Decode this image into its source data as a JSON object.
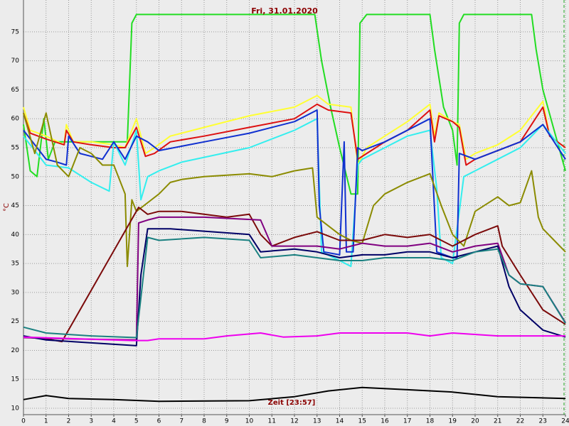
{
  "chart_data": {
    "type": "line",
    "title": "Fri, 31.01.2020",
    "xlabel": "Zeit [23:57]",
    "ylabel": "°C",
    "xlim": [
      0,
      24
    ],
    "xticks": [
      0,
      1,
      2,
      3,
      4,
      5,
      6,
      7,
      8,
      9,
      10,
      11,
      12,
      13,
      14,
      15,
      16,
      17,
      18,
      19,
      20,
      21,
      22,
      23,
      24
    ],
    "ylim": [
      8.9,
      80.5
    ],
    "yticks": [
      10,
      15,
      20,
      25,
      30,
      35,
      40,
      45,
      50,
      55,
      60,
      65,
      70,
      75
    ],
    "grid": true,
    "series": [
      {
        "color": "#22dd22",
        "x": [
          0,
          0.3,
          0.6,
          0.9,
          1.1,
          1.4,
          2,
          3,
          4,
          4.5,
          4.6,
          4.8,
          5,
          6,
          8,
          10,
          12,
          12.9,
          13.2,
          13.6,
          14,
          14.5,
          14.8,
          14.9,
          15.2,
          17,
          18,
          18.2,
          18.6,
          19,
          19.2,
          19.3,
          19.5,
          21,
          22.5,
          22.7,
          23,
          23.5,
          24
        ],
        "values": [
          59,
          51,
          50,
          60,
          53,
          56,
          56,
          56,
          56,
          56,
          56,
          76.5,
          78,
          78,
          78,
          78,
          78,
          78,
          70,
          62,
          55,
          47,
          47,
          76.5,
          78,
          78,
          78,
          72,
          62,
          58,
          52,
          76.5,
          78,
          78,
          78,
          72,
          65,
          58,
          51
        ]
      },
      {
        "color": "#ffff33",
        "x": [
          0,
          0.3,
          1,
          1.8,
          1.9,
          2.2,
          3,
          4,
          4.5,
          5,
          5.4,
          5.8,
          6.5,
          8,
          10,
          12,
          13,
          13.5,
          14.5,
          14.8,
          15.2,
          16,
          17,
          18,
          18.2,
          18.4,
          19,
          19.3,
          19.6,
          20,
          21,
          22,
          23,
          23.3,
          24
        ],
        "values": [
          62,
          58,
          57,
          55.5,
          59,
          56,
          56,
          55.5,
          55,
          60,
          54,
          55,
          57,
          58.5,
          60.5,
          62,
          64,
          62.5,
          62,
          52,
          55,
          57,
          59.5,
          62.5,
          57,
          61,
          59.5,
          59,
          53,
          54,
          55.5,
          58,
          63,
          57,
          55
        ]
      },
      {
        "color": "#dd1111",
        "x": [
          0,
          0.3,
          1,
          1.8,
          1.9,
          2.2,
          3,
          4,
          4.5,
          5,
          5.4,
          5.8,
          6.5,
          8,
          10,
          12,
          13,
          13.5,
          14.5,
          14.8,
          15.2,
          16,
          17,
          18,
          18.2,
          18.4,
          19,
          19.3,
          19.6,
          20,
          21,
          22,
          23,
          23.3,
          24
        ],
        "values": [
          61,
          57.5,
          56.5,
          55.5,
          58,
          56,
          55.5,
          55,
          55,
          58.5,
          53.5,
          54,
          56,
          57,
          58.5,
          60,
          62.5,
          61.5,
          61,
          53,
          54,
          56,
          58,
          61.5,
          56,
          60.5,
          59.5,
          58.5,
          52,
          53,
          54.5,
          56,
          62,
          57,
          55
        ]
      },
      {
        "color": "#33eeee",
        "x": [
          0,
          1,
          2,
          3,
          3.8,
          4,
          4.5,
          5,
          5.2,
          5.5,
          6,
          7,
          10,
          12,
          13,
          13.2,
          14,
          14.5,
          14.8,
          15,
          16,
          17,
          18,
          18.3,
          18.5,
          19,
          19.5,
          20,
          21,
          22,
          23,
          24
        ],
        "values": [
          57,
          52,
          51.5,
          49,
          47.5,
          56,
          52,
          58,
          46,
          50,
          51,
          52.5,
          55,
          58,
          60,
          37,
          35.5,
          34.5,
          52,
          53,
          55,
          57,
          58,
          48,
          36,
          35,
          50,
          51,
          53,
          55,
          59,
          54
        ]
      },
      {
        "color": "#1030d0",
        "x": [
          0,
          1,
          1.5,
          1.9,
          2,
          2.5,
          3.5,
          4,
          4.5,
          5,
          5.5,
          6,
          8,
          10,
          12,
          13,
          13.1,
          13.3,
          14,
          14.2,
          14.3,
          14.6,
          14.8,
          15,
          16,
          18,
          18.1,
          18.3,
          19,
          19.2,
          19.3,
          20,
          22,
          23,
          24
        ],
        "values": [
          58,
          53,
          52.5,
          52,
          57,
          54,
          53,
          56,
          53,
          57,
          56,
          54.5,
          56,
          57.5,
          59.5,
          61.5,
          45,
          37,
          36.5,
          56,
          37,
          37,
          55,
          54.5,
          56,
          60,
          52,
          37,
          36,
          36,
          54,
          53,
          56,
          59,
          53
        ]
      },
      {
        "color": "#8b8b00",
        "x": [
          0,
          0.5,
          1,
          1.5,
          2,
          2.5,
          3,
          3.5,
          4,
          4.5,
          4.6,
          4.8,
          5,
          5.5,
          6,
          6.5,
          7,
          8,
          10,
          11,
          12,
          12.8,
          13,
          14,
          14.5,
          15,
          15.5,
          16,
          17,
          18,
          18.5,
          19,
          19.5,
          20,
          21,
          21.5,
          22,
          22.5,
          22.8,
          23,
          23.5,
          24
        ],
        "values": [
          61,
          54,
          61,
          52,
          50,
          55,
          54,
          52,
          52,
          47,
          34.5,
          46,
          44,
          45.5,
          47,
          49,
          49.5,
          50,
          50.5,
          50,
          51,
          51.5,
          43,
          40,
          39,
          38.5,
          45,
          47,
          49,
          50.5,
          45,
          40,
          38,
          44,
          46.5,
          45,
          45.5,
          51,
          43,
          41,
          39,
          37
        ]
      },
      {
        "color": "#7b0a0a",
        "x": [
          0,
          1,
          1.7,
          5.1,
          5.5,
          6,
          7,
          8,
          9,
          10,
          10.5,
          11,
          12,
          13,
          14,
          15,
          16,
          17,
          18,
          18.5,
          19,
          20,
          21,
          21.2,
          22,
          23,
          24
        ],
        "values": [
          22.3,
          22,
          21.5,
          44.7,
          43.5,
          44,
          44,
          43.5,
          43,
          43.5,
          40,
          38,
          39.5,
          40.5,
          39,
          39,
          40,
          39.5,
          40,
          39,
          38,
          40,
          41.5,
          38,
          33,
          27,
          24.5
        ]
      },
      {
        "color": "#800080",
        "x": [
          0,
          2,
          5,
          5.1,
          5.5,
          6,
          8,
          10.5,
          11,
          12,
          13,
          14,
          15,
          16,
          17,
          18,
          19,
          20,
          21,
          21.5,
          22,
          23,
          24
        ],
        "values": [
          22.2,
          22,
          21.8,
          42,
          42.5,
          43,
          43,
          42.5,
          38,
          38,
          38,
          37.5,
          38.5,
          38,
          38,
          38.5,
          37,
          38,
          38.5,
          33,
          31.5,
          31,
          24.8
        ]
      },
      {
        "color": "#000066",
        "x": [
          0,
          1,
          3,
          5,
          5.2,
          5.5,
          6.5,
          10,
          10.5,
          12,
          13,
          14,
          15,
          16,
          17,
          18,
          19,
          20,
          21,
          21.5,
          22,
          23,
          24
        ],
        "values": [
          22.5,
          21.8,
          21.3,
          20.8,
          33,
          41,
          41,
          40,
          37,
          37.5,
          37,
          36,
          36.5,
          36.5,
          37,
          37,
          36,
          37,
          38,
          31,
          27,
          23.5,
          22.3
        ]
      },
      {
        "color": "#1a8080",
        "x": [
          0,
          1,
          3,
          5,
          5.5,
          6,
          8,
          10,
          10.5,
          12,
          13,
          14,
          15,
          16,
          17,
          18,
          19,
          20,
          21,
          21.5,
          22,
          23,
          24
        ],
        "values": [
          24,
          23,
          22.5,
          22.2,
          39.5,
          39,
          39.5,
          39,
          36,
          36.5,
          36,
          35.5,
          35.5,
          36,
          36,
          36,
          35.5,
          37,
          37.5,
          33,
          31.5,
          31,
          24.7
        ]
      },
      {
        "color": "#ee00ee",
        "x": [
          0,
          4.8,
          5.5,
          6,
          8,
          9,
          10.5,
          11.5,
          13,
          14,
          17,
          18,
          19,
          21,
          24
        ],
        "values": [
          22.3,
          21.7,
          21.7,
          22,
          22,
          22.5,
          23,
          22.3,
          22.5,
          23,
          23,
          22.5,
          23,
          22.5,
          22.5
        ]
      },
      {
        "color": "#000000",
        "x": [
          0,
          1,
          2,
          4,
          6,
          10,
          12,
          13.5,
          15,
          17,
          19,
          21,
          24
        ],
        "values": [
          11.5,
          12.2,
          11.7,
          11.5,
          11.2,
          11.3,
          12,
          13,
          13.6,
          13.2,
          12.8,
          12,
          11.7
        ]
      }
    ]
  }
}
